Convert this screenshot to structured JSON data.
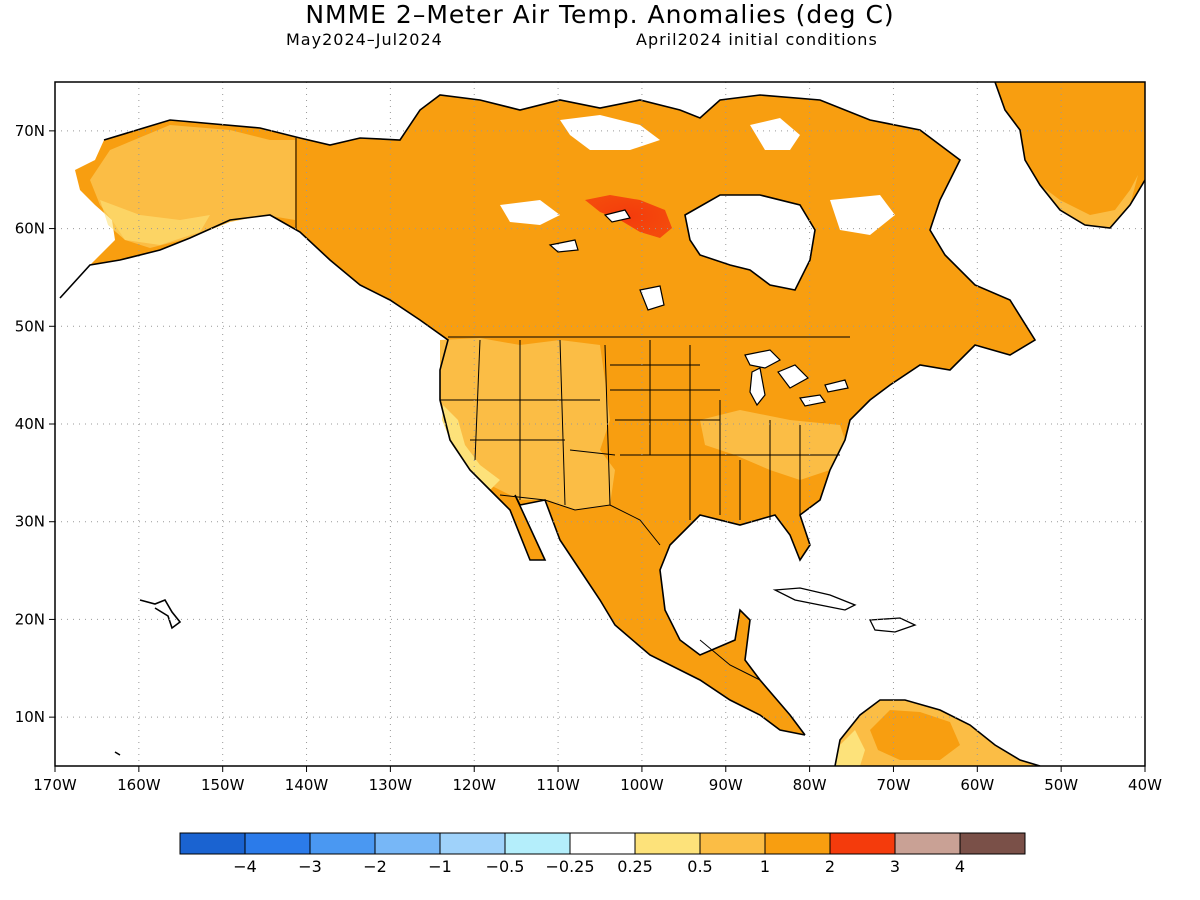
{
  "title": "NMME 2–Meter Air Temp. Anomalies (deg C)",
  "period": "May2024–Jul2024",
  "conditions": "April2024 initial conditions",
  "map": {
    "lon_range": [
      -170,
      -40
    ],
    "lat_range": [
      5,
      75
    ],
    "lon_ticks": [
      {
        "lon": -170,
        "label": "170W"
      },
      {
        "lon": -160,
        "label": "160W"
      },
      {
        "lon": -150,
        "label": "150W"
      },
      {
        "lon": -140,
        "label": "140W"
      },
      {
        "lon": -130,
        "label": "130W"
      },
      {
        "lon": -120,
        "label": "120W"
      },
      {
        "lon": -110,
        "label": "110W"
      },
      {
        "lon": -100,
        "label": "100W"
      },
      {
        "lon": -90,
        "label": "90W"
      },
      {
        "lon": -80,
        "label": "80W"
      },
      {
        "lon": -70,
        "label": "70W"
      },
      {
        "lon": -60,
        "label": "60W"
      },
      {
        "lon": -50,
        "label": "50W"
      },
      {
        "lon": -40,
        "label": "40W"
      }
    ],
    "lat_ticks": [
      {
        "lat": 70,
        "label": "70N"
      },
      {
        "lat": 60,
        "label": "60N"
      },
      {
        "lat": 50,
        "label": "50N"
      },
      {
        "lat": 40,
        "label": "40N"
      },
      {
        "lat": 30,
        "label": "30N"
      },
      {
        "lat": 20,
        "label": "20N"
      },
      {
        "lat": 10,
        "label": "10N"
      }
    ],
    "grid": "dotted",
    "land_color": "#000000",
    "ocean_color": "#ffffff"
  },
  "colorbar": {
    "colors": [
      "#1a63d1",
      "#2b7bea",
      "#4a98f2",
      "#77b7f7",
      "#9fd2fa",
      "#b4eefb",
      "#ffffff",
      "#fde27a",
      "#fbbd45",
      "#f89e10",
      "#f43b0c",
      "#c9a195",
      "#7a5048"
    ],
    "labels": [
      "−4",
      "−3",
      "−2",
      "−1",
      "−0.5",
      "−0.25",
      "0.25",
      "0.5",
      "1",
      "2",
      "3",
      "4"
    ]
  }
}
